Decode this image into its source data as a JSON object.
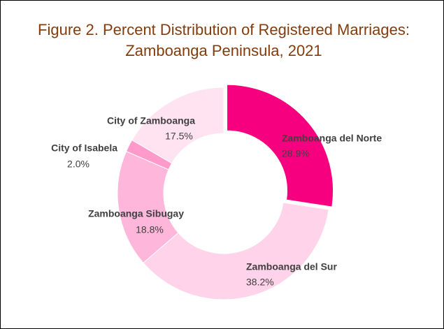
{
  "chart_data": {
    "type": "donut",
    "title": [
      "Figure 2. Percent Distribution of Registered Marriages:",
      "Zamboanga Peninsula, 2021"
    ],
    "categories": [
      "Zamboanga del Norte",
      "Zamboanga del Sur",
      "Zamboanga Sibugay",
      "City of Isabela",
      "City of Zamboanga"
    ],
    "values": [
      28.9,
      38.2,
      18.8,
      2.0,
      17.5
    ],
    "value_labels": [
      "28.9%",
      "38.2%",
      "18.8%",
      "2.0%",
      "17.5%"
    ],
    "colors": [
      "#f7007f",
      "#ffd3e9",
      "#ffb6db",
      "#ff9acb",
      "#ffe3f1"
    ],
    "exploded": [
      true,
      false,
      false,
      false,
      false
    ]
  }
}
